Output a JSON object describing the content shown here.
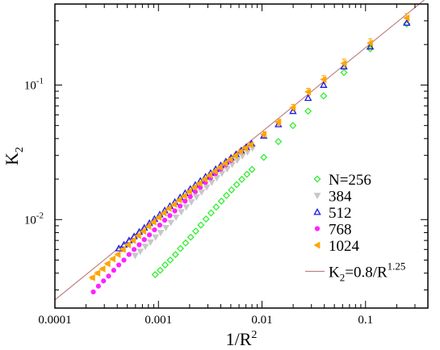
{
  "chart_data": {
    "type": "scatter",
    "xscale": "log",
    "yscale": "log",
    "xlim": [
      0.0001,
      0.4
    ],
    "ylim": [
      0.0022,
      0.4
    ],
    "xlabel": {
      "base": "1/R",
      "sup": "2"
    },
    "ylabel": {
      "base": "K",
      "sub": "2"
    },
    "grid": false,
    "legend_position": "bottom-right",
    "x_ticks": [
      {
        "value": 0.0001,
        "label": "0.0001"
      },
      {
        "value": 0.001,
        "label": "0.001"
      },
      {
        "value": 0.01,
        "label": "0.01"
      },
      {
        "value": 0.1,
        "label": "0.1"
      }
    ],
    "y_ticks": [
      {
        "value": 0.01,
        "base": "10",
        "exp": "-2"
      },
      {
        "value": 0.1,
        "base": "10",
        "exp": "-1"
      }
    ],
    "series": [
      {
        "name": "N=256",
        "marker": "diamond",
        "color": "#33ee33",
        "x": [
          0.00093,
          0.00104,
          0.00116,
          0.0013,
          0.00146,
          0.00163,
          0.00183,
          0.00205,
          0.00229,
          0.00257,
          0.00288,
          0.00322,
          0.00361,
          0.00405,
          0.00454,
          0.00508,
          0.00569,
          0.00638,
          0.00715,
          0.008,
          0.0104,
          0.0144,
          0.0199,
          0.0279,
          0.0394,
          0.0619,
          0.111,
          0.25
        ],
        "y": [
          0.0039,
          0.0042,
          0.0046,
          0.005,
          0.0055,
          0.0061,
          0.0067,
          0.0074,
          0.0082,
          0.0091,
          0.0101,
          0.0112,
          0.0124,
          0.0137,
          0.0151,
          0.0166,
          0.0182,
          0.0199,
          0.0217,
          0.0236,
          0.029,
          0.038,
          0.05,
          0.064,
          0.083,
          0.124,
          0.186,
          0.285
        ]
      },
      {
        "name": "384",
        "marker": "triangle-down",
        "color": "#c8c8c8",
        "x": [
          0.000596,
          0.000668,
          0.000748,
          0.000838,
          0.000939,
          0.00105,
          0.00118,
          0.00132,
          0.00148,
          0.00166,
          0.00186,
          0.00208,
          0.00233,
          0.00261,
          0.00292,
          0.00327,
          0.00366,
          0.0041,
          0.0046,
          0.00515,
          0.00577,
          0.00646,
          0.00724,
          0.0081
        ],
        "y": [
          0.0054,
          0.0058,
          0.0063,
          0.0068,
          0.0074,
          0.008,
          0.0087,
          0.0095,
          0.0104,
          0.0114,
          0.0124,
          0.0135,
          0.0147,
          0.016,
          0.0174,
          0.0189,
          0.0204,
          0.0221,
          0.0238,
          0.0257,
          0.0276,
          0.0297,
          0.0318,
          0.034
        ]
      },
      {
        "name": "512",
        "marker": "triangle-up",
        "color": "#1a1aee",
        "x": [
          0.000414,
          0.000464,
          0.00052,
          0.000582,
          0.000652,
          0.00073,
          0.000818,
          0.000916,
          0.00103,
          0.00115,
          0.00129,
          0.00144,
          0.00162,
          0.00181,
          0.00203,
          0.00227,
          0.00254,
          0.00285,
          0.00319,
          0.00357,
          0.004,
          0.00448,
          0.00502,
          0.00562,
          0.0063,
          0.00705,
          0.0079,
          0.0104,
          0.0144,
          0.0199,
          0.0279,
          0.0394,
          0.0619,
          0.111,
          0.25
        ],
        "y": [
          0.0061,
          0.0065,
          0.007,
          0.0075,
          0.0081,
          0.0087,
          0.0094,
          0.0101,
          0.0109,
          0.0117,
          0.0126,
          0.0135,
          0.0146,
          0.0157,
          0.0169,
          0.0181,
          0.0194,
          0.0208,
          0.0222,
          0.0237,
          0.0253,
          0.027,
          0.0288,
          0.0306,
          0.0326,
          0.0346,
          0.0368,
          0.042,
          0.051,
          0.064,
          0.08,
          0.1,
          0.137,
          0.193,
          0.29
        ]
      },
      {
        "name": "768",
        "marker": "circle",
        "color": "#ff22ff",
        "x": [
          0.000235,
          0.000263,
          0.000295,
          0.00033,
          0.00037,
          0.000414,
          0.000464,
          0.00052,
          0.000582,
          0.000652,
          0.00073,
          0.000818,
          0.000916,
          0.00103,
          0.00115,
          0.00129,
          0.00144,
          0.00162,
          0.00181,
          0.00203,
          0.00227,
          0.00254,
          0.00285,
          0.00319,
          0.00357,
          0.004,
          0.00448,
          0.00502
        ],
        "y": [
          0.0029,
          0.0032,
          0.0035,
          0.0038,
          0.0042,
          0.0046,
          0.005,
          0.0055,
          0.006,
          0.0065,
          0.0071,
          0.0077,
          0.0084,
          0.0091,
          0.0099,
          0.0107,
          0.0116,
          0.0126,
          0.0137,
          0.0148,
          0.0161,
          0.0174,
          0.0189,
          0.0204,
          0.022,
          0.0237,
          0.0255,
          0.0274
        ]
      },
      {
        "name": "1024",
        "marker": "triangle-left",
        "color": "#ffa500",
        "x": [
          0.00023,
          0.000258,
          0.000289,
          0.000323,
          0.000362,
          0.000406,
          0.000455,
          0.000509,
          0.00057,
          0.000639,
          0.000716,
          0.000802,
          0.000898,
          0.00101,
          0.00113,
          0.00126,
          0.00142,
          0.00159,
          0.00178,
          0.00199,
          0.00223,
          0.0025,
          0.0028,
          0.00313,
          0.00351,
          0.00393,
          0.0044,
          0.00493,
          0.00553,
          0.00619,
          0.00693,
          0.00777,
          0.0104,
          0.0144,
          0.0199,
          0.0279,
          0.0394,
          0.0619,
          0.111,
          0.25
        ],
        "y": [
          0.0037,
          0.004,
          0.0043,
          0.0047,
          0.0051,
          0.0055,
          0.006,
          0.0065,
          0.007,
          0.0076,
          0.0082,
          0.0089,
          0.0096,
          0.0104,
          0.0112,
          0.0121,
          0.013,
          0.014,
          0.015,
          0.0162,
          0.0174,
          0.0186,
          0.02,
          0.0214,
          0.0229,
          0.0245,
          0.0262,
          0.028,
          0.0299,
          0.032,
          0.034,
          0.036,
          0.043,
          0.053,
          0.068,
          0.089,
          0.11,
          0.145,
          0.205,
          0.315
        ],
        "yerr": [
          0.0001,
          0.0001,
          0.0001,
          0.0001,
          0.0001,
          0.0001,
          0.0002,
          0.0002,
          0.0002,
          0.0002,
          0.0002,
          0.0002,
          0.0003,
          0.0003,
          0.0003,
          0.0003,
          0.0004,
          0.0004,
          0.0004,
          0.0005,
          0.0005,
          0.0006,
          0.0006,
          0.0007,
          0.0008,
          0.0009,
          0.001,
          0.0011,
          0.0012,
          0.0014,
          0.0015,
          0.0016,
          0.002,
          0.0027,
          0.0038,
          0.0055,
          0.0075,
          0.011,
          0.016,
          0.025
        ]
      }
    ],
    "fit_line": {
      "label_lhs": "K",
      "label_sub": "2",
      "label_mid": "=0.8/R",
      "label_sup": "1.25",
      "coefficient": 0.8,
      "exponent_in_R": 1.25,
      "color": "#c08080"
    }
  }
}
